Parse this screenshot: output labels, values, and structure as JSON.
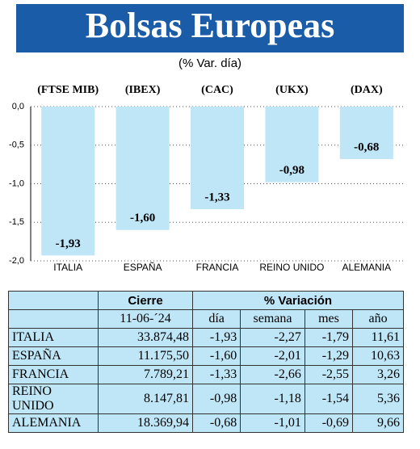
{
  "chart_data": {
    "type": "bar",
    "title": "Bolsas Europeas",
    "subtitle": "(% Var. día)",
    "categories": [
      "ITALIA",
      "ESPAÑA",
      "FRANCIA",
      "REINO UNIDO",
      "ALEMANIA"
    ],
    "index_labels": [
      "(FTSE MIB)",
      "(IBEX)",
      "(CAC)",
      "(UKX)",
      "(DAX)"
    ],
    "values": [
      -1.93,
      -1.6,
      -1.33,
      -0.98,
      -0.68
    ],
    "value_labels": [
      "-1,93",
      "-1,60",
      "-1,33",
      "-0,98",
      "-0,68"
    ],
    "color": "#bfe6f7",
    "ylim": [
      -2,
      0
    ],
    "yticks": [
      {
        "value": 0,
        "label": "0,0"
      },
      {
        "value": -0.5,
        "label": "-0,5"
      },
      {
        "value": -1,
        "label": "-1,0"
      },
      {
        "value": -1.5,
        "label": "-1,5"
      },
      {
        "value": -2,
        "label": "-2,0"
      }
    ],
    "grid": true
  },
  "table": {
    "header": [
      "Cierre",
      "% Variación"
    ],
    "subheader": [
      "11-06-´24",
      "día",
      "semana",
      "mes",
      "año"
    ],
    "rows": [
      [
        "ITALIA",
        "33.874,48",
        "-1,93",
        "-2,27",
        "-1,79",
        "11,61"
      ],
      [
        "ESPAÑA",
        "11.175,50",
        "-1,60",
        "-2,01",
        "-1,29",
        "10,63"
      ],
      [
        "FRANCIA",
        "7.789,21",
        "-1,33",
        "-2,66",
        "-2,55",
        "3,26"
      ],
      [
        "REINO UNIDO",
        "8.147,81",
        "-0,98",
        "-1,18",
        "-1,54",
        "5,36"
      ],
      [
        "ALEMANIA",
        "18.369,94",
        "-0,68",
        "-1,01",
        "-0,69",
        "9,66"
      ]
    ]
  }
}
